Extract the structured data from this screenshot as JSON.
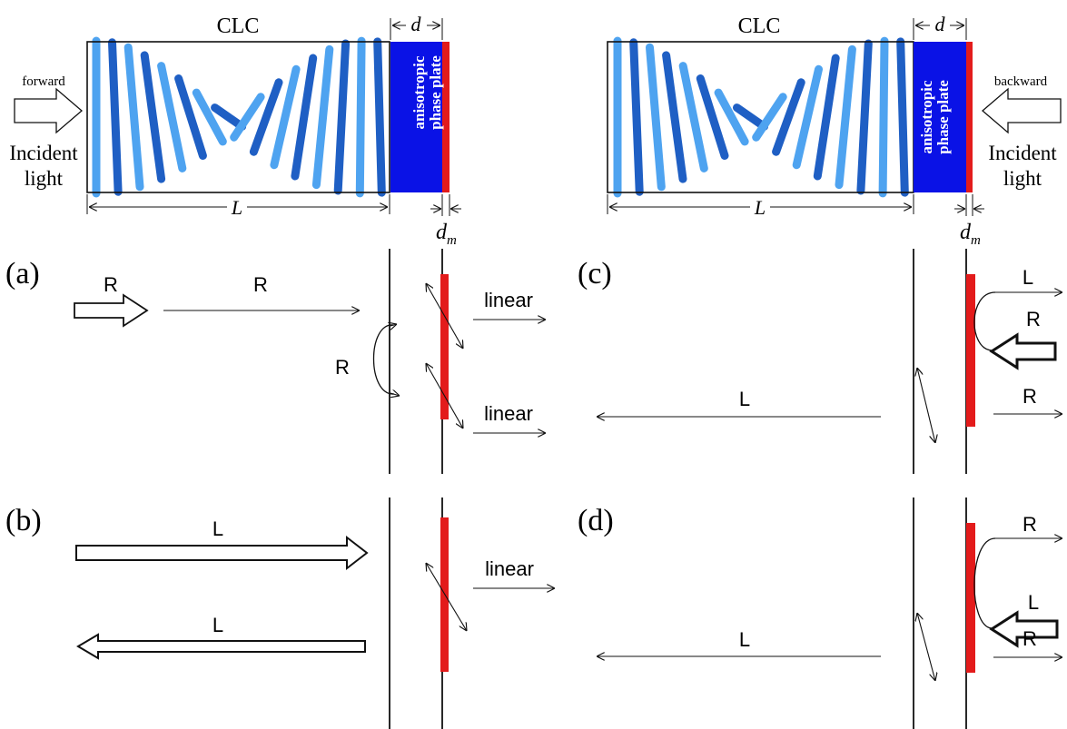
{
  "colors": {
    "rod_dark": "#1f5fc4",
    "rod_light": "#4ea3f0",
    "plate_blue": "#0a12e6",
    "mirror_red": "#e31b1b",
    "line": "#111111"
  },
  "top_left": {
    "clc_label": "CLC",
    "d_label": "d",
    "plate_text_line1": "anisotropic",
    "plate_text_line2": "phase plate",
    "L_label": "L",
    "dm_label": "d",
    "dm_sub": "m",
    "direction_label": "forward",
    "incident_line1": "Incident",
    "incident_line2": "light"
  },
  "top_right": {
    "clc_label": "CLC",
    "d_label": "d",
    "plate_text_line1": "anisotropic",
    "plate_text_line2": "phase plate",
    "L_label": "L",
    "dm_label": "d",
    "dm_sub": "m",
    "direction_label": "backward",
    "incident_line1": "Incident",
    "incident_line2": "light"
  },
  "panel_a": {
    "tag": "(a)",
    "incident_label": "R",
    "transmit_label": "R",
    "loop_label": "R",
    "out1_label": "linear",
    "out2_label": "linear"
  },
  "panel_b": {
    "tag": "(b)",
    "incident_label": "L",
    "reflect_label": "L",
    "out_label": "linear"
  },
  "panel_c": {
    "tag": "(c)",
    "top_label": "L",
    "incident_label": "R",
    "bottom_label": "R",
    "reflect_label": "L"
  },
  "panel_d": {
    "tag": "(d)",
    "top_label": "R",
    "incident_label": "L",
    "bottom_label": "R",
    "reflect_label": "L"
  }
}
